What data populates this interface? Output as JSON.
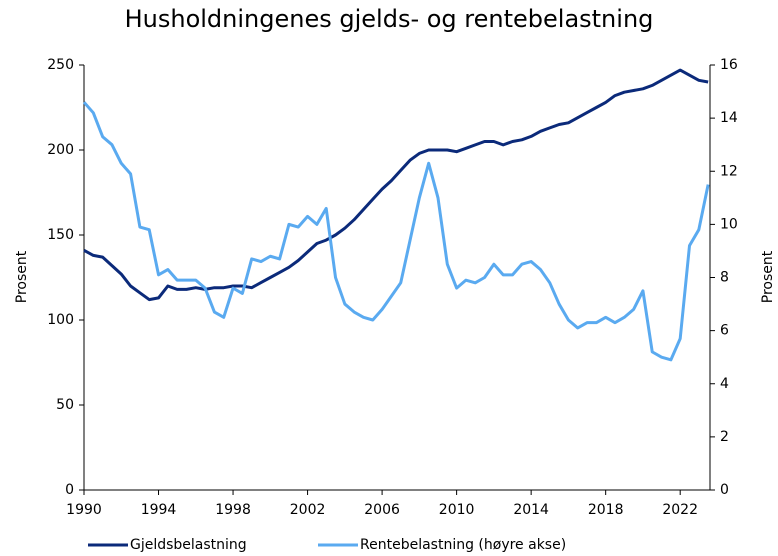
{
  "chart_data": {
    "type": "line",
    "title": "Husholdningenes gjelds- og rentebelastning",
    "ylabel": "Prosent",
    "y2label": "Prosent",
    "x": [
      1990,
      1990.5,
      1991,
      1991.5,
      1992,
      1992.5,
      1993,
      1993.5,
      1994,
      1994.5,
      1995,
      1995.5,
      1996,
      1996.5,
      1997,
      1997.5,
      1998,
      1998.5,
      1999,
      1999.5,
      2000,
      2000.5,
      2001,
      2001.5,
      2002,
      2002.5,
      2003,
      2003.5,
      2004,
      2004.5,
      2005,
      2005.5,
      2006,
      2006.5,
      2007,
      2007.5,
      2008,
      2008.5,
      2009,
      2009.5,
      2010,
      2010.5,
      2011,
      2011.5,
      2012,
      2012.5,
      2013,
      2013.5,
      2014,
      2014.5,
      2015,
      2015.5,
      2016,
      2016.5,
      2017,
      2017.5,
      2018,
      2018.5,
      2019,
      2019.5,
      2020,
      2020.5,
      2021,
      2021.5,
      2022,
      2022.5,
      2023,
      2023.5
    ],
    "series": [
      {
        "name": "Gjeldsbelastning",
        "color": "#0b2a7a",
        "axis": "y",
        "values": [
          141,
          138,
          137,
          132,
          127,
          120,
          116,
          112,
          113,
          120,
          118,
          118,
          119,
          118,
          119,
          119,
          120,
          120,
          119,
          122,
          125,
          128,
          131,
          135,
          140,
          145,
          147,
          150,
          154,
          159,
          165,
          171,
          177,
          182,
          188,
          194,
          198,
          200,
          200,
          200,
          199,
          201,
          203,
          205,
          205,
          203,
          205,
          206,
          208,
          211,
          213,
          215,
          216,
          219,
          222,
          225,
          228,
          232,
          234,
          235,
          236,
          238,
          241,
          244,
          247,
          244,
          241,
          240
        ]
      },
      {
        "name": "Rentebelastning (høyre akse)",
        "color": "#5aaaf0",
        "axis": "y2",
        "values": [
          14.6,
          14.2,
          13.3,
          13.0,
          12.3,
          11.9,
          9.9,
          9.8,
          8.1,
          8.3,
          7.9,
          7.9,
          7.9,
          7.6,
          6.7,
          6.5,
          7.6,
          7.4,
          8.7,
          8.6,
          8.8,
          8.7,
          10.0,
          9.9,
          10.3,
          10.0,
          10.6,
          8.0,
          7.0,
          6.7,
          6.5,
          6.4,
          6.8,
          7.3,
          7.8,
          9.4,
          11.0,
          12.3,
          11.0,
          8.5,
          7.6,
          7.9,
          7.8,
          8.0,
          8.5,
          8.1,
          8.1,
          8.5,
          8.6,
          8.3,
          7.8,
          7.0,
          6.4,
          6.1,
          6.3,
          6.3,
          6.5,
          6.3,
          6.5,
          6.8,
          7.5,
          5.2,
          5.0,
          4.9,
          5.7,
          9.2,
          9.8,
          11.5
        ]
      }
    ],
    "xlim": [
      1990,
      2023.6
    ],
    "xticks": [
      1990,
      1994,
      1998,
      2002,
      2006,
      2010,
      2014,
      2018,
      2022
    ],
    "ylim": [
      0,
      250
    ],
    "yticks": [
      0,
      50,
      100,
      150,
      200,
      250
    ],
    "y2lim": [
      0,
      16
    ],
    "y2ticks": [
      0,
      2,
      4,
      6,
      8,
      10,
      12,
      14,
      16
    ],
    "legend": "bottom"
  }
}
